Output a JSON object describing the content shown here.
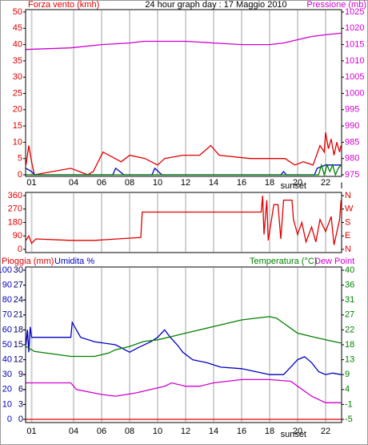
{
  "chart_data": [
    {
      "type": "line",
      "title": "24 hour graph day : 17 Maggio 2010",
      "xlim": [
        0.57,
        23.14
      ],
      "xticks": [
        {
          "value": 1,
          "label": "01"
        },
        {
          "value": 4,
          "label": "04"
        },
        {
          "value": 6,
          "label": "06"
        },
        {
          "value": 8,
          "label": "08"
        },
        {
          "value": 10,
          "label": "10"
        },
        {
          "value": 12,
          "label": "12"
        },
        {
          "value": 14,
          "label": "14"
        },
        {
          "value": 16,
          "label": "16"
        },
        {
          "value": 18,
          "label": "18"
        },
        {
          "value": 20,
          "label": "20"
        },
        {
          "value": 22,
          "label": "22"
        }
      ],
      "ylim": [
        -0.49,
        50.74
      ],
      "yticks": [
        0,
        5,
        10,
        15,
        20,
        25,
        30,
        35,
        40,
        45,
        50
      ],
      "ytick_color": "#e00000",
      "y2lim": [
        974.51,
        1025.74
      ],
      "y2ticks": [
        975,
        980,
        985,
        990,
        995,
        1000,
        1005,
        1010,
        1015,
        1020,
        1025
      ],
      "y2tick_color": "#d000d0",
      "grid": true,
      "annotations": [
        {
          "text": "sunset",
          "x": 19.7
        },
        {
          "text": "I",
          "x": 23.14
        }
      ],
      "series": [
        {
          "name": "Forza vento (kmh)",
          "color": "#e00000",
          "axis": "y",
          "x": [
            0.6,
            0.8,
            1.0,
            1.2,
            3.8,
            5.0,
            5.4,
            6.1,
            7.4,
            7.7,
            8.0,
            9.1,
            10.0,
            10.5,
            11.8,
            13.0,
            13.8,
            14.4,
            16.6,
            17.5,
            18.6,
            19.1,
            19.8,
            20.4,
            21.1,
            21.6,
            21.9,
            22.0,
            22.2,
            22.4,
            22.6,
            22.8,
            23.0,
            23.1
          ],
          "values": [
            3,
            9,
            4,
            0,
            2,
            0,
            1,
            7,
            4,
            5,
            6,
            5,
            3,
            5,
            6,
            6,
            9,
            6,
            5,
            5,
            5,
            5,
            3,
            4,
            3,
            9,
            7,
            13,
            8,
            11,
            6,
            10,
            7,
            9
          ]
        },
        {
          "name": "Pressione (mb)",
          "color": "#d000d0",
          "axis": "y2",
          "x": [
            0.6,
            3.8,
            6,
            8,
            9,
            12,
            14,
            16,
            18,
            19,
            20,
            21,
            22,
            23.1
          ],
          "values": [
            1013.5,
            1014,
            1015,
            1015.5,
            1016,
            1016,
            1015.5,
            1015,
            1015,
            1015.5,
            1016.5,
            1017.5,
            1018,
            1018.5
          ]
        },
        {
          "color": "#0000c0",
          "axis": "y",
          "x": [
            0.6,
            1.0,
            1.2,
            6.8,
            7.0,
            7.6,
            9.6,
            9.8,
            10.3,
            18.8,
            19.0,
            19.2,
            21.2,
            21.4,
            22.0,
            23.1
          ],
          "values": [
            2,
            1,
            0,
            0,
            2,
            0,
            0,
            2,
            0,
            0,
            1,
            0,
            0,
            2,
            3,
            3
          ]
        },
        {
          "color": "#008000",
          "axis": "y",
          "x": [
            0.6,
            21.5,
            21.7,
            21.9,
            22.1,
            22.3,
            22.5,
            22.7,
            22.9,
            23.1
          ],
          "values": [
            0,
            0,
            3,
            0,
            3,
            1,
            3,
            0,
            2,
            3
          ]
        }
      ]
    },
    {
      "type": "line",
      "xlim": [
        0.57,
        23.14
      ],
      "ylim": [
        -21.5,
        381.5
      ],
      "yticks": [
        0,
        90,
        180,
        270,
        360
      ],
      "ytick_color": "#e00000",
      "y2lim": [
        -21.5,
        381.5
      ],
      "y2ticks": [
        {
          "value": 0,
          "label": "N"
        },
        {
          "value": 90,
          "label": "E"
        },
        {
          "value": 180,
          "label": "S"
        },
        {
          "value": 270,
          "label": "W"
        },
        {
          "value": 360,
          "label": "N"
        }
      ],
      "y2tick_color": "#e00000",
      "grid": true,
      "series": [
        {
          "color": "#e00000",
          "axis": "y",
          "x": [
            0.6,
            0.8,
            1.0,
            1.3,
            3.8,
            5.5,
            8.8,
            8.9,
            17.4,
            17.5,
            17.6,
            17.8,
            17.9,
            18.3,
            18.6,
            18.8,
            19.0,
            19.6,
            19.7,
            20.0,
            20.3,
            20.6,
            21.0,
            21.3,
            21.6,
            22.0,
            22.4,
            22.6,
            23.0,
            23.1
          ],
          "values": [
            60,
            90,
            40,
            70,
            60,
            60,
            80,
            250,
            250,
            360,
            100,
            330,
            60,
            300,
            300,
            70,
            330,
            330,
            200,
            100,
            180,
            50,
            150,
            50,
            200,
            120,
            220,
            30,
            200,
            330
          ]
        }
      ]
    },
    {
      "type": "line",
      "xlim": [
        0.57,
        23.14
      ],
      "xticks": [
        {
          "value": 1,
          "label": "01"
        },
        {
          "value": 4,
          "label": "04"
        },
        {
          "value": 6,
          "label": "06"
        },
        {
          "value": 8,
          "label": "08"
        },
        {
          "value": 10,
          "label": "10"
        },
        {
          "value": 12,
          "label": "12"
        },
        {
          "value": 14,
          "label": "14"
        },
        {
          "value": 16,
          "label": "16"
        },
        {
          "value": 18,
          "label": "18"
        },
        {
          "value": 20,
          "label": "20"
        },
        {
          "value": 22,
          "label": "22"
        }
      ],
      "ylim": [
        -2.15,
        102.15
      ],
      "yticks": [
        0,
        10,
        20,
        30,
        40,
        50,
        60,
        70,
        80,
        90,
        100
      ],
      "ytick_color": "#0000c0",
      "y3lim": [
        -0.645,
        30.645
      ],
      "y3ticks": [
        0,
        3,
        6,
        9,
        12,
        15,
        18,
        21,
        24,
        27,
        30
      ],
      "y3tick_color": "#000060",
      "y2lim": [
        -5.97,
        40.97
      ],
      "y2ticks": [
        -5,
        {
          "value": -0.5,
          "label": "-1"
        },
        4,
        {
          "value": 8.5,
          "label": "9"
        },
        13,
        {
          "value": 17.5,
          "label": "18"
        },
        22,
        {
          "value": 26.5,
          "label": "27"
        },
        31,
        {
          "value": 35.5,
          "label": "36"
        },
        40
      ],
      "y2tick_color": "#008000",
      "grid": true,
      "annotations": [
        {
          "text": "sunset",
          "x": 19.7
        }
      ],
      "series": [
        {
          "name": "Pioggia (mm)",
          "color": "#e00000",
          "axis": "y3",
          "x": [
            0.6,
            23.1
          ],
          "values": [
            0,
            0
          ]
        },
        {
          "name": "Umidita %",
          "color": "#0000c0",
          "axis": "y",
          "x": [
            0.6,
            0.7,
            0.8,
            0.9,
            1.0,
            3.8,
            3.9,
            4.2,
            4.5,
            5.5,
            7.0,
            8.0,
            8.6,
            9.5,
            10.0,
            10.5,
            10.9,
            11.4,
            11.8,
            12.5,
            13.5,
            14.5,
            16,
            17,
            18,
            19.0,
            19.5,
            20.0,
            20.5,
            21,
            21.5,
            22,
            22.5,
            23.1
          ],
          "values": [
            50,
            60,
            45,
            62,
            55,
            55,
            65,
            60,
            55,
            52,
            50,
            45,
            48,
            52,
            55,
            60,
            55,
            50,
            45,
            40,
            38,
            35,
            34,
            32,
            30,
            30,
            35,
            40,
            42,
            38,
            32,
            30,
            31,
            30
          ]
        },
        {
          "name": "Temperatura (°C)",
          "color": "#008000",
          "axis": "y2",
          "x": [
            0.6,
            1.2,
            3.8,
            5.5,
            6.5,
            7,
            8,
            9,
            10,
            11,
            12,
            13,
            14,
            15,
            16,
            17,
            18,
            18.5,
            19,
            19.5,
            20,
            21,
            22,
            23.1
          ],
          "values": [
            17,
            15.5,
            14,
            14,
            15,
            16,
            17,
            18.5,
            19,
            20,
            21,
            22,
            23,
            24,
            25,
            25.5,
            26,
            25.5,
            24,
            22.5,
            21,
            20,
            19,
            18
          ]
        },
        {
          "name": "Dew Point",
          "color": "#d000d0",
          "axis": "y2",
          "x": [
            0.6,
            3.8,
            4.2,
            6,
            7,
            8.5,
            9.5,
            10.5,
            11,
            12,
            13,
            14,
            16,
            18,
            19.5,
            20,
            21,
            22,
            23.1
          ],
          "values": [
            6,
            6,
            4,
            2.5,
            2,
            3,
            4,
            5,
            6,
            5,
            5,
            6,
            7,
            7,
            6.5,
            5,
            2,
            0,
            0
          ]
        }
      ]
    }
  ]
}
